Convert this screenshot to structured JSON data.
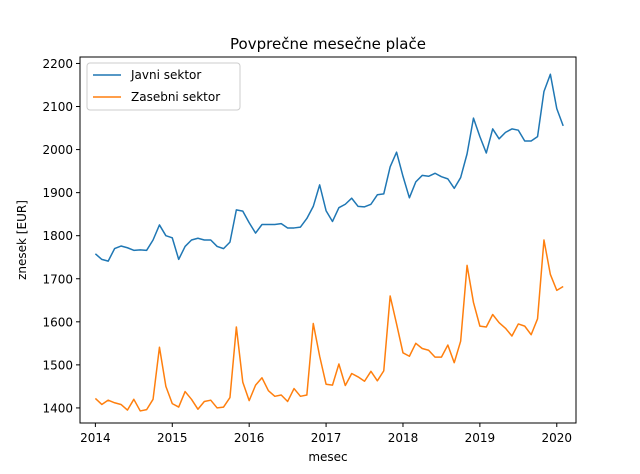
{
  "chart_data": {
    "type": "line",
    "title": "Povprečne mesečne plače",
    "xlabel": "mesec",
    "ylabel": "znesek [EUR]",
    "xlim": [
      2013.8,
      2020.25
    ],
    "ylim": [
      1365,
      2215
    ],
    "xticks": [
      2014,
      2015,
      2016,
      2017,
      2018,
      2019,
      2020
    ],
    "yticks": [
      1400,
      1500,
      1600,
      1700,
      1800,
      1900,
      2000,
      2100,
      2200
    ],
    "grid": false,
    "legend_position": "upper-left",
    "x_start": 2014.0,
    "x_step_months": 1,
    "series": [
      {
        "name": "Javni sektor",
        "color": "#1f77b4",
        "values": [
          1758,
          1745,
          1741,
          1770,
          1776,
          1772,
          1766,
          1767,
          1766,
          1790,
          1825,
          1800,
          1795,
          1745,
          1775,
          1790,
          1794,
          1790,
          1790,
          1775,
          1770,
          1785,
          1860,
          1857,
          1830,
          1806,
          1826,
          1826,
          1826,
          1828,
          1818,
          1818,
          1820,
          1840,
          1868,
          1918,
          1858,
          1833,
          1865,
          1873,
          1887,
          1868,
          1867,
          1873,
          1895,
          1897,
          1960,
          1994,
          1938,
          1888,
          1925,
          1940,
          1938,
          1945,
          1937,
          1932,
          1910,
          1935,
          1990,
          2073,
          2030,
          1992,
          2048,
          2025,
          2040,
          2048,
          2045,
          2020,
          2020,
          2030,
          2135,
          2175,
          2095,
          2055
        ]
      },
      {
        "name": "Zasebni sektor",
        "color": "#ff7f0e",
        "values": [
          1422,
          1408,
          1418,
          1412,
          1408,
          1395,
          1420,
          1393,
          1396,
          1420,
          1541,
          1450,
          1410,
          1402,
          1438,
          1420,
          1397,
          1415,
          1418,
          1400,
          1402,
          1424,
          1588,
          1460,
          1417,
          1453,
          1470,
          1440,
          1427,
          1430,
          1415,
          1445,
          1427,
          1430,
          1596,
          1520,
          1455,
          1453,
          1502,
          1452,
          1480,
          1472,
          1462,
          1485,
          1463,
          1486,
          1660,
          1595,
          1528,
          1520,
          1550,
          1538,
          1534,
          1518,
          1518,
          1546,
          1505,
          1555,
          1731,
          1645,
          1590,
          1588,
          1617,
          1598,
          1585,
          1567,
          1595,
          1590,
          1570,
          1607,
          1790,
          1710,
          1673,
          1682
        ]
      }
    ]
  }
}
